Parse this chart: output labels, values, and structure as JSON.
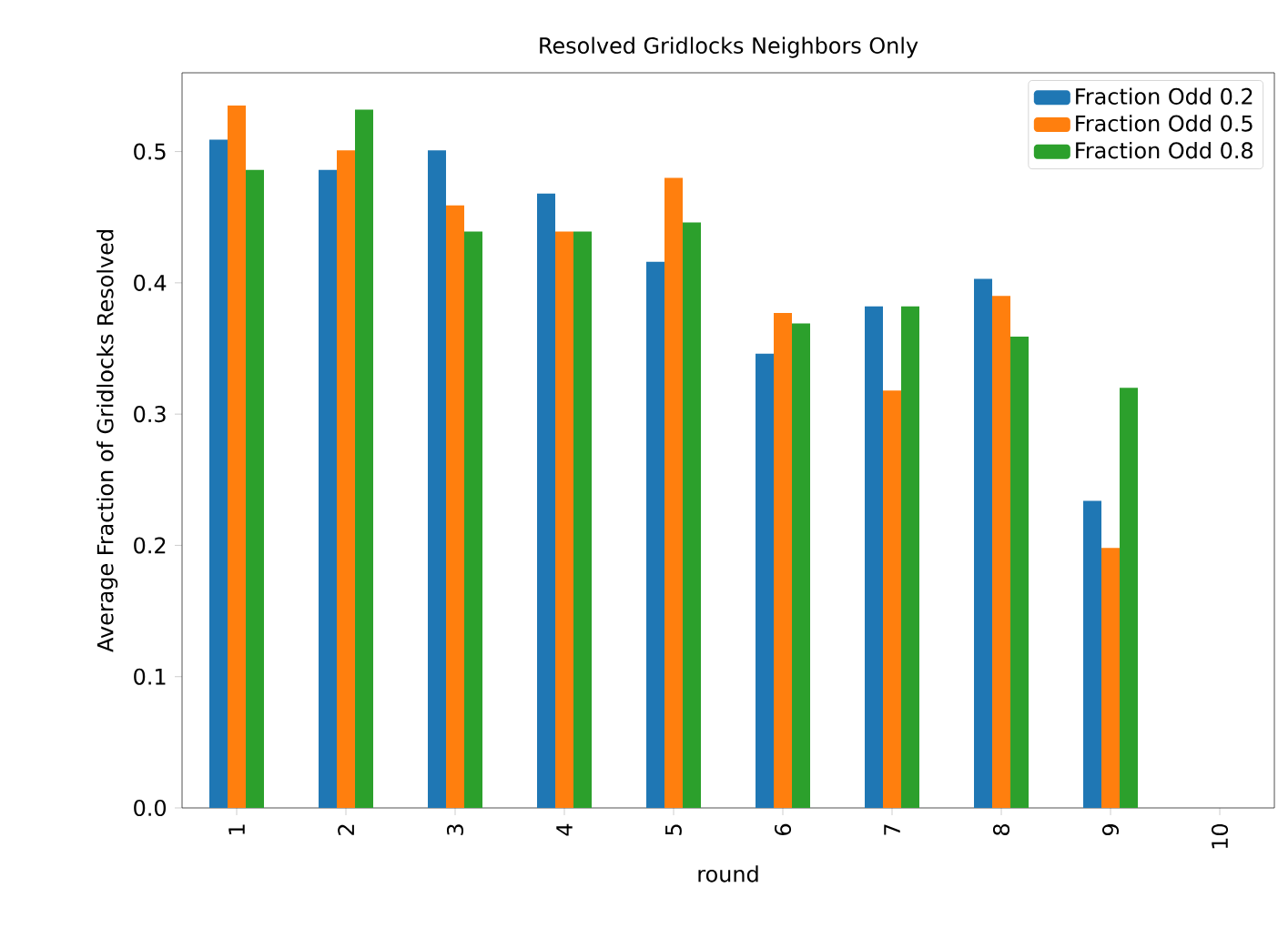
{
  "chart_data": {
    "type": "bar",
    "title": "Resolved Gridlocks Neighbors Only",
    "xlabel": "round",
    "ylabel": "Average Fraction of Gridlocks Resolved",
    "categories": [
      "1",
      "2",
      "3",
      "4",
      "5",
      "6",
      "7",
      "8",
      "9",
      "10"
    ],
    "series": [
      {
        "name": "Fraction Odd 0.2",
        "color": "#1f77b4",
        "values": [
          0.509,
          0.486,
          0.501,
          0.468,
          0.416,
          0.346,
          0.382,
          0.403,
          0.234,
          null
        ]
      },
      {
        "name": "Fraction Odd 0.5",
        "color": "#ff7f0e",
        "values": [
          0.535,
          0.501,
          0.459,
          0.439,
          0.48,
          0.377,
          0.318,
          0.39,
          0.198,
          null
        ]
      },
      {
        "name": "Fraction Odd 0.8",
        "color": "#2ca02c",
        "values": [
          0.486,
          0.532,
          0.439,
          0.439,
          0.446,
          0.369,
          0.382,
          0.359,
          0.32,
          null
        ]
      }
    ],
    "ylim": [
      0,
      0.56
    ],
    "yticks": [
      {
        "value": 0,
        "label": "0.0"
      },
      {
        "value": 0.1,
        "label": "0.1"
      },
      {
        "value": 0.2,
        "label": "0.2"
      },
      {
        "value": 0.3,
        "label": "0.3"
      },
      {
        "value": 0.4,
        "label": "0.4"
      },
      {
        "value": 0.5,
        "label": "0.5"
      }
    ],
    "legend": "top right"
  }
}
